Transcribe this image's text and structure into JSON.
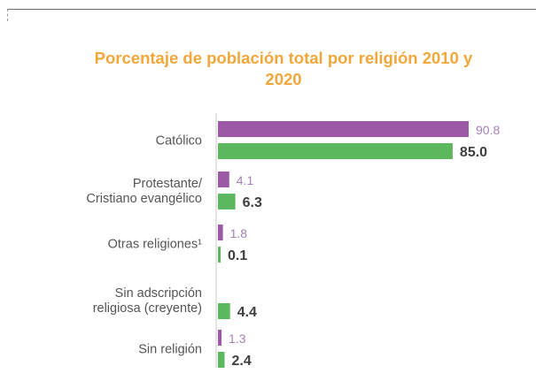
{
  "chart_data": {
    "type": "bar",
    "orientation": "horizontal",
    "title_lines": [
      "Porcentaje de población total por religión 2010 y",
      "2020"
    ],
    "categories": [
      [
        "Católico"
      ],
      [
        "Protestante/",
        "Cristiano evangélico"
      ],
      [
        "Otras religiones¹"
      ],
      [
        "Sin adscripción",
        "religiosa (creyente)"
      ],
      [
        "Sin religión"
      ]
    ],
    "series": [
      {
        "color": "#9b59a6",
        "values": [
          90.8,
          4.1,
          1.8,
          null,
          1.3
        ],
        "labels": [
          "90.8",
          "4.1",
          "1.8",
          "",
          "1.3"
        ]
      },
      {
        "color": "#5cb85c",
        "values": [
          85.0,
          6.3,
          0.1,
          4.4,
          2.4
        ],
        "labels": [
          "85.0",
          "6.3",
          "0.1",
          "4.4",
          "2.4"
        ]
      }
    ],
    "xlim": [
      0,
      90.8
    ],
    "legend": "none",
    "grid": false
  }
}
